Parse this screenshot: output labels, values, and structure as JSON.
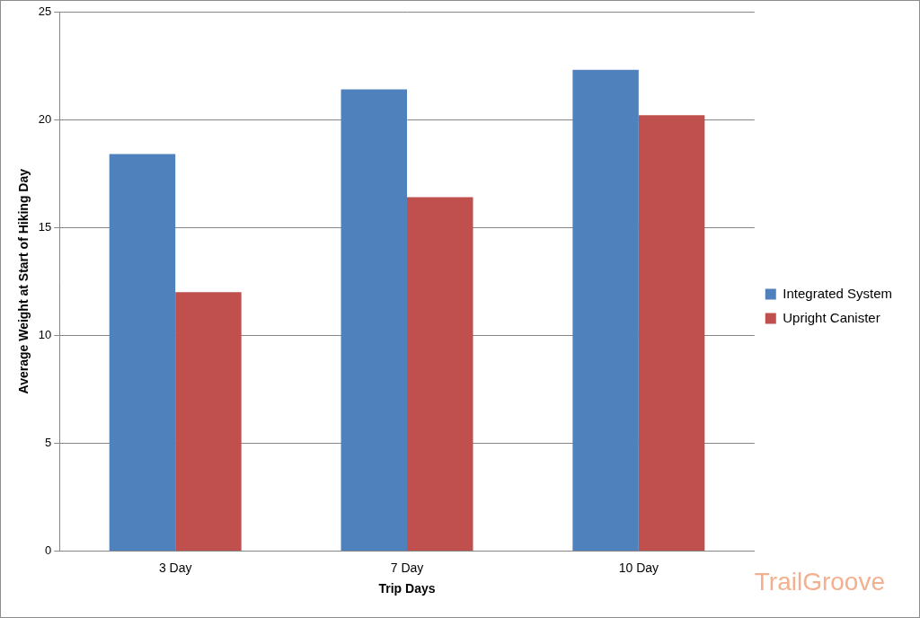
{
  "chart_data": {
    "type": "bar",
    "x_label": "Trip Days",
    "y_label": "Average Weight at Start of Hiking Day",
    "categories": [
      "3 Day",
      "7 Day",
      "10 Day"
    ],
    "series": [
      {
        "name": "Integrated System",
        "color": "#4f81bd",
        "values": [
          18.4,
          21.4,
          22.3
        ]
      },
      {
        "name": "Upright Canister",
        "color": "#c0504d",
        "values": [
          12.0,
          16.4,
          20.2
        ]
      }
    ],
    "ylim": [
      0,
      25
    ],
    "yticks": [
      0,
      5,
      10,
      15,
      20,
      25
    ],
    "grid": true,
    "legend": "right",
    "annotations": [
      "TrailGroove"
    ]
  }
}
